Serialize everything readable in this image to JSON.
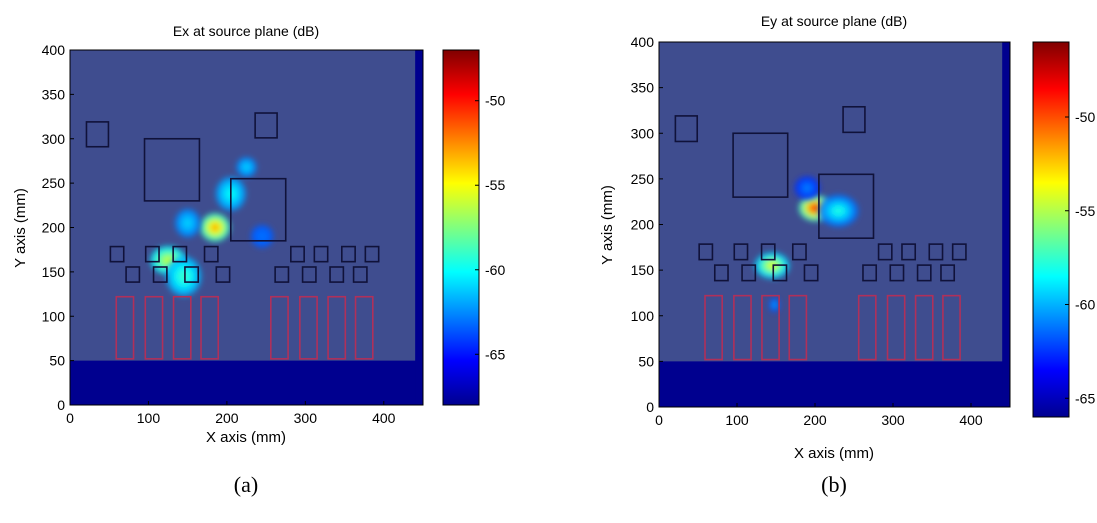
{
  "chart_data": [
    {
      "type": "heatmap",
      "title": "Ex at source plane (dB)",
      "xlabel": "X axis (mm)",
      "ylabel": "Y axis (mm)",
      "caption": "(a)",
      "xlim": [
        0,
        450
      ],
      "ylim": [
        0,
        400
      ],
      "xticks": [
        0,
        100,
        200,
        300,
        400
      ],
      "yticks": [
        0,
        50,
        100,
        150,
        200,
        250,
        300,
        350,
        400
      ],
      "colorbar": {
        "range": [
          -68,
          -47
        ],
        "ticks": [
          -50,
          -55,
          -60,
          -65
        ]
      },
      "hotspots": [
        {
          "x": 185,
          "y": 200,
          "value": -53,
          "sx": 12,
          "sy": 10
        },
        {
          "x": 225,
          "y": 268,
          "value": -61,
          "sx": 8,
          "sy": 7
        },
        {
          "x": 125,
          "y": 163,
          "value": -56,
          "sx": 14,
          "sy": 10
        },
        {
          "x": 145,
          "y": 145,
          "value": -59,
          "sx": 14,
          "sy": 14
        },
        {
          "x": 205,
          "y": 238,
          "value": -60,
          "sx": 12,
          "sy": 12
        },
        {
          "x": 150,
          "y": 205,
          "value": -61,
          "sx": 10,
          "sy": 10
        },
        {
          "x": 245,
          "y": 190,
          "value": -63,
          "sx": 9,
          "sy": 8
        }
      ]
    },
    {
      "type": "heatmap",
      "title": "Ey at source plane (dB)",
      "xlabel": "X axis (mm)",
      "ylabel": "Y axis (mm)",
      "caption": "(b)",
      "xlim": [
        0,
        450
      ],
      "ylim": [
        0,
        400
      ],
      "xticks": [
        0,
        100,
        200,
        300,
        400
      ],
      "yticks": [
        0,
        50,
        100,
        150,
        200,
        250,
        300,
        350,
        400
      ],
      "colorbar": {
        "range": [
          -66,
          -46
        ],
        "ticks": [
          -50,
          -55,
          -60,
          -65
        ]
      },
      "hotspots": [
        {
          "x": 200,
          "y": 218,
          "value": -49,
          "sx": 13,
          "sy": 9
        },
        {
          "x": 145,
          "y": 155,
          "value": -54,
          "sx": 14,
          "sy": 9
        },
        {
          "x": 230,
          "y": 215,
          "value": -58,
          "sx": 16,
          "sy": 11
        },
        {
          "x": 148,
          "y": 112,
          "value": -60,
          "sx": 4,
          "sy": 5
        },
        {
          "x": 190,
          "y": 240,
          "value": -61,
          "sx": 10,
          "sy": 8
        }
      ]
    }
  ],
  "layout_shapes": {
    "squares_small": [
      {
        "x": 35,
        "y": 305
      },
      {
        "x": 250,
        "y": 315
      }
    ],
    "squares_large": [
      {
        "x": 130,
        "y": 265
      },
      {
        "x": 240,
        "y": 220
      }
    ],
    "via_squares_top": [
      {
        "x": 60,
        "y": 170
      },
      {
        "x": 105,
        "y": 170
      },
      {
        "x": 140,
        "y": 170
      },
      {
        "x": 180,
        "y": 170
      },
      {
        "x": 290,
        "y": 170
      },
      {
        "x": 320,
        "y": 170
      },
      {
        "x": 355,
        "y": 170
      },
      {
        "x": 385,
        "y": 170
      }
    ],
    "via_squares_bottom": [
      {
        "x": 80,
        "y": 147
      },
      {
        "x": 115,
        "y": 147
      },
      {
        "x": 155,
        "y": 147
      },
      {
        "x": 195,
        "y": 147
      },
      {
        "x": 270,
        "y": 147
      },
      {
        "x": 305,
        "y": 147
      },
      {
        "x": 340,
        "y": 147
      },
      {
        "x": 370,
        "y": 147
      }
    ],
    "rect_components": [
      {
        "x": 70
      },
      {
        "x": 107
      },
      {
        "x": 143
      },
      {
        "x": 178
      },
      {
        "x": 267
      },
      {
        "x": 304
      },
      {
        "x": 340
      },
      {
        "x": 375
      }
    ]
  }
}
